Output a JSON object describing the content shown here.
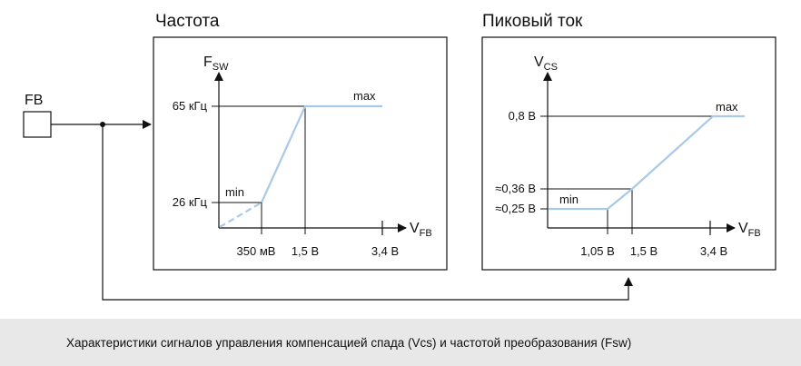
{
  "input": {
    "label": "FB"
  },
  "frequency_panel": {
    "title": "Частота",
    "y_axis": {
      "main": "F",
      "sub": "SW"
    },
    "x_axis": {
      "main": "V",
      "sub": "FB"
    },
    "y_ticks": [
      "65 кГц",
      "26 кГц"
    ],
    "x_ticks": [
      "350 мВ",
      "1,5 В",
      "3,4 В"
    ],
    "curve_labels": {
      "min": "min",
      "max": "max"
    }
  },
  "current_panel": {
    "title": "Пиковый ток",
    "y_axis": {
      "main": "V",
      "sub": "CS"
    },
    "x_axis": {
      "main": "V",
      "sub": "FB"
    },
    "y_ticks": [
      "0,8 В",
      "≈0,36 В",
      "≈0,25 В"
    ],
    "x_ticks": [
      "1,05 В",
      "1,5 В",
      "3,4 В"
    ],
    "curve_labels": {
      "min": "min",
      "max": "max"
    }
  },
  "caption": "Характеристики сигналов управления компенсацией спада (Vcs) и частотой преобразования (Fsw)",
  "colors": {
    "curve": "#a9c9e8",
    "line": "#111111",
    "caption_bg": "#e8e8e8"
  }
}
